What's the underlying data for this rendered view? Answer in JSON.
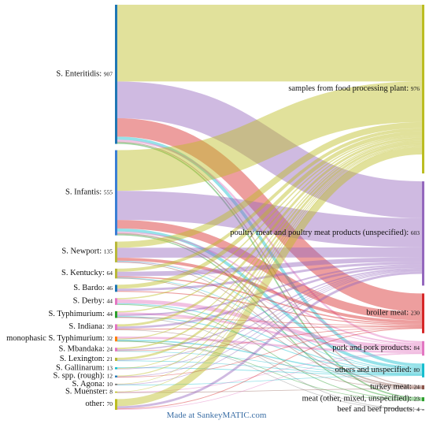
{
  "chart_data": {
    "type": "sankey",
    "sources": [
      {
        "label": "S. Enteritidis",
        "value": 907,
        "color": "#1f77b4"
      },
      {
        "label": "S. Infantis",
        "value": 555,
        "color": "#3a7fd5"
      },
      {
        "label": "S. Newport",
        "value": 135,
        "color": "#b8b83a"
      },
      {
        "label": "S. Kentucky",
        "value": 64,
        "color": "#b8b83a"
      },
      {
        "label": "S. Bardo",
        "value": 46,
        "color": "#1f77b4"
      },
      {
        "label": "S. Derby",
        "value": 44,
        "color": "#e377c2"
      },
      {
        "label": "S. Typhimurium",
        "value": 44,
        "color": "#2ca02c"
      },
      {
        "label": "S. Indiana",
        "value": 39,
        "color": "#e377c2"
      },
      {
        "label": "monophasic S. Typhimurium",
        "value": 32,
        "color": "#ff7f0e"
      },
      {
        "label": "S. Mbandaka",
        "value": 24,
        "color": "#e377c2"
      },
      {
        "label": "S. Lexington",
        "value": 21,
        "color": "#b8b83a"
      },
      {
        "label": "S. Gallinarum",
        "value": 13,
        "color": "#17becf"
      },
      {
        "label": "S. spp. (rough)",
        "value": 12,
        "color": "#1f77b4"
      },
      {
        "label": "S. Agona",
        "value": 10,
        "color": "#7f7f7f"
      },
      {
        "label": "S. Muenster",
        "value": 8,
        "color": "#bcbd22"
      },
      {
        "label": "other",
        "value": 70,
        "color": "#bcbd22"
      }
    ],
    "targets": [
      {
        "label": "samples from food processing plant",
        "value": 976,
        "color": "#bcbd22"
      },
      {
        "label": "poultry meat and poultry meat products (unspecified)",
        "value": 603,
        "color": "#9467bd"
      },
      {
        "label": "broiler meat",
        "value": 230,
        "color": "#d62728"
      },
      {
        "label": "pork and pork products",
        "value": 84,
        "color": "#e377c2"
      },
      {
        "label": "others and unspecified",
        "value": 80,
        "color": "#17becf"
      },
      {
        "label": "turkey meat",
        "value": 24,
        "color": "#8c564b"
      },
      {
        "label": "meat (other, mixed, unspecified)",
        "value": 23,
        "color": "#2ca02c"
      },
      {
        "label": "beef and beef products",
        "value": 4,
        "color": "#7f7f7f"
      }
    ],
    "flows": [
      {
        "source": "S. Enteritidis",
        "target": "samples from food processing plant",
        "value": 500,
        "color": "#bcbd22"
      },
      {
        "source": "S. Enteritidis",
        "target": "poultry meat and poultry meat products (unspecified)",
        "value": 240,
        "color": "#9467bd"
      },
      {
        "source": "S. Enteritidis",
        "target": "broiler meat",
        "value": 120,
        "color": "#d62728"
      },
      {
        "source": "S. Enteritidis",
        "target": "others and unspecified",
        "value": 20,
        "color": "#17becf"
      },
      {
        "source": "S. Enteritidis",
        "target": "pork and pork products",
        "value": 12,
        "color": "#e377c2"
      },
      {
        "source": "S. Enteritidis",
        "target": "turkey meat",
        "value": 6,
        "color": "#8c564b"
      },
      {
        "source": "S. Enteritidis",
        "target": "meat (other, mixed, unspecified)",
        "value": 9,
        "color": "#2ca02c"
      },
      {
        "source": "S. Infantis",
        "target": "samples from food processing plant",
        "value": 265,
        "color": "#bcbd22"
      },
      {
        "source": "S. Infantis",
        "target": "poultry meat and poultry meat products (unspecified)",
        "value": 190,
        "color": "#9467bd"
      },
      {
        "source": "S. Infantis",
        "target": "broiler meat",
        "value": 55,
        "color": "#d62728"
      },
      {
        "source": "S. Infantis",
        "target": "others and unspecified",
        "value": 20,
        "color": "#17becf"
      },
      {
        "source": "S. Infantis",
        "target": "pork and pork products",
        "value": 10,
        "color": "#e377c2"
      },
      {
        "source": "S. Infantis",
        "target": "turkey meat",
        "value": 8,
        "color": "#8c564b"
      },
      {
        "source": "S. Infantis",
        "target": "meat (other, mixed, unspecified)",
        "value": 7,
        "color": "#2ca02c"
      },
      {
        "source": "S. Newport",
        "target": "samples from food processing plant",
        "value": 40,
        "color": "#bcbd22"
      },
      {
        "source": "S. Newport",
        "target": "poultry meat and poultry meat products (unspecified)",
        "value": 65,
        "color": "#9467bd"
      },
      {
        "source": "S. Newport",
        "target": "broiler meat",
        "value": 20,
        "color": "#d62728"
      },
      {
        "source": "S. Newport",
        "target": "others and unspecified",
        "value": 5,
        "color": "#17becf"
      },
      {
        "source": "S. Newport",
        "target": "pork and pork products",
        "value": 3,
        "color": "#e377c2"
      },
      {
        "source": "S. Newport",
        "target": "turkey meat",
        "value": 2,
        "color": "#8c564b"
      },
      {
        "source": "S. Kentucky",
        "target": "samples from food processing plant",
        "value": 20,
        "color": "#bcbd22"
      },
      {
        "source": "S. Kentucky",
        "target": "poultry meat and poultry meat products (unspecified)",
        "value": 30,
        "color": "#9467bd"
      },
      {
        "source": "S. Kentucky",
        "target": "broiler meat",
        "value": 8,
        "color": "#d62728"
      },
      {
        "source": "S. Kentucky",
        "target": "others and unspecified",
        "value": 4,
        "color": "#17becf"
      },
      {
        "source": "S. Kentucky",
        "target": "turkey meat",
        "value": 2,
        "color": "#8c564b"
      },
      {
        "source": "S. Bardo",
        "target": "samples from food processing plant",
        "value": 25,
        "color": "#bcbd22"
      },
      {
        "source": "S. Bardo",
        "target": "poultry meat and poultry meat products (unspecified)",
        "value": 15,
        "color": "#9467bd"
      },
      {
        "source": "S. Bardo",
        "target": "broiler meat",
        "value": 6,
        "color": "#d62728"
      },
      {
        "source": "S. Derby",
        "target": "samples from food processing plant",
        "value": 8,
        "color": "#bcbd22"
      },
      {
        "source": "S. Derby",
        "target": "pork and pork products",
        "value": 25,
        "color": "#e377c2"
      },
      {
        "source": "S. Derby",
        "target": "others and unspecified",
        "value": 6,
        "color": "#17becf"
      },
      {
        "source": "S. Derby",
        "target": "meat (other, mixed, unspecified)",
        "value": 5,
        "color": "#2ca02c"
      },
      {
        "source": "S. Typhimurium",
        "target": "samples from food processing plant",
        "value": 8,
        "color": "#bcbd22"
      },
      {
        "source": "S. Typhimurium",
        "target": "pork and pork products",
        "value": 14,
        "color": "#e377c2"
      },
      {
        "source": "S. Typhimurium",
        "target": "poultry meat and poultry meat products (unspecified)",
        "value": 10,
        "color": "#9467bd"
      },
      {
        "source": "S. Typhimurium",
        "target": "others and unspecified",
        "value": 6,
        "color": "#17becf"
      },
      {
        "source": "S. Typhimurium",
        "target": "beef and beef products",
        "value": 2,
        "color": "#7f7f7f"
      },
      {
        "source": "S. Typhimurium",
        "target": "broiler meat",
        "value": 4,
        "color": "#d62728"
      },
      {
        "source": "S. Indiana",
        "target": "samples from food processing plant",
        "value": 15,
        "color": "#bcbd22"
      },
      {
        "source": "S. Indiana",
        "target": "poultry meat and poultry meat products (unspecified)",
        "value": 14,
        "color": "#9467bd"
      },
      {
        "source": "S. Indiana",
        "target": "broiler meat",
        "value": 6,
        "color": "#d62728"
      },
      {
        "source": "S. Indiana",
        "target": "turkey meat",
        "value": 4,
        "color": "#8c564b"
      },
      {
        "source": "monophasic S. Typhimurium",
        "target": "pork and pork products",
        "value": 14,
        "color": "#e377c2"
      },
      {
        "source": "monophasic S. Typhimurium",
        "target": "samples from food processing plant",
        "value": 6,
        "color": "#bcbd22"
      },
      {
        "source": "monophasic S. Typhimurium",
        "target": "others and unspecified",
        "value": 8,
        "color": "#17becf"
      },
      {
        "source": "monophasic S. Typhimurium",
        "target": "beef and beef products",
        "value": 2,
        "color": "#7f7f7f"
      },
      {
        "source": "monophasic S. Typhimurium",
        "target": "meat (other, mixed, unspecified)",
        "value": 2,
        "color": "#2ca02c"
      },
      {
        "source": "S. Mbandaka",
        "target": "samples from food processing plant",
        "value": 10,
        "color": "#bcbd22"
      },
      {
        "source": "S. Mbandaka",
        "target": "poultry meat and poultry meat products (unspecified)",
        "value": 8,
        "color": "#9467bd"
      },
      {
        "source": "S. Mbandaka",
        "target": "broiler meat",
        "value": 4,
        "color": "#d62728"
      },
      {
        "source": "S. Mbandaka",
        "target": "others and unspecified",
        "value": 2,
        "color": "#17becf"
      },
      {
        "source": "S. Lexington",
        "target": "samples from food processing plant",
        "value": 14,
        "color": "#bcbd22"
      },
      {
        "source": "S. Lexington",
        "target": "poultry meat and poultry meat products (unspecified)",
        "value": 5,
        "color": "#9467bd"
      },
      {
        "source": "S. Lexington",
        "target": "others and unspecified",
        "value": 2,
        "color": "#17becf"
      },
      {
        "source": "S. Gallinarum",
        "target": "others and unspecified",
        "value": 5,
        "color": "#17becf"
      },
      {
        "source": "S. Gallinarum",
        "target": "samples from food processing plant",
        "value": 5,
        "color": "#bcbd22"
      },
      {
        "source": "S. Gallinarum",
        "target": "poultry meat and poultry meat products (unspecified)",
        "value": 3,
        "color": "#9467bd"
      },
      {
        "source": "S. spp. (rough)",
        "target": "samples from food processing plant",
        "value": 6,
        "color": "#bcbd22"
      },
      {
        "source": "S. spp. (rough)",
        "target": "poultry meat and poultry meat products (unspecified)",
        "value": 4,
        "color": "#9467bd"
      },
      {
        "source": "S. spp. (rough)",
        "target": "broiler meat",
        "value": 2,
        "color": "#d62728"
      },
      {
        "source": "S. Agona",
        "target": "samples from food processing plant",
        "value": 4,
        "color": "#bcbd22"
      },
      {
        "source": "S. Agona",
        "target": "poultry meat and poultry meat products (unspecified)",
        "value": 4,
        "color": "#9467bd"
      },
      {
        "source": "S. Agona",
        "target": "others and unspecified",
        "value": 2,
        "color": "#17becf"
      },
      {
        "source": "S. Muenster",
        "target": "samples from food processing plant",
        "value": 4,
        "color": "#bcbd22"
      },
      {
        "source": "S. Muenster",
        "target": "pork and pork products",
        "value": 2,
        "color": "#e377c2"
      },
      {
        "source": "S. Muenster",
        "target": "turkey meat",
        "value": 2,
        "color": "#8c564b"
      },
      {
        "source": "other",
        "target": "samples from food processing plant",
        "value": 46,
        "color": "#bcbd22"
      },
      {
        "source": "other",
        "target": "poultry meat and poultry meat products (unspecified)",
        "value": 15,
        "color": "#9467bd"
      },
      {
        "source": "other",
        "target": "broiler meat",
        "value": 5,
        "color": "#d62728"
      },
      {
        "source": "other",
        "target": "pork and pork products",
        "value": 4,
        "color": "#e377c2"
      }
    ]
  },
  "credit": "Made at SankeyMATIC.com"
}
